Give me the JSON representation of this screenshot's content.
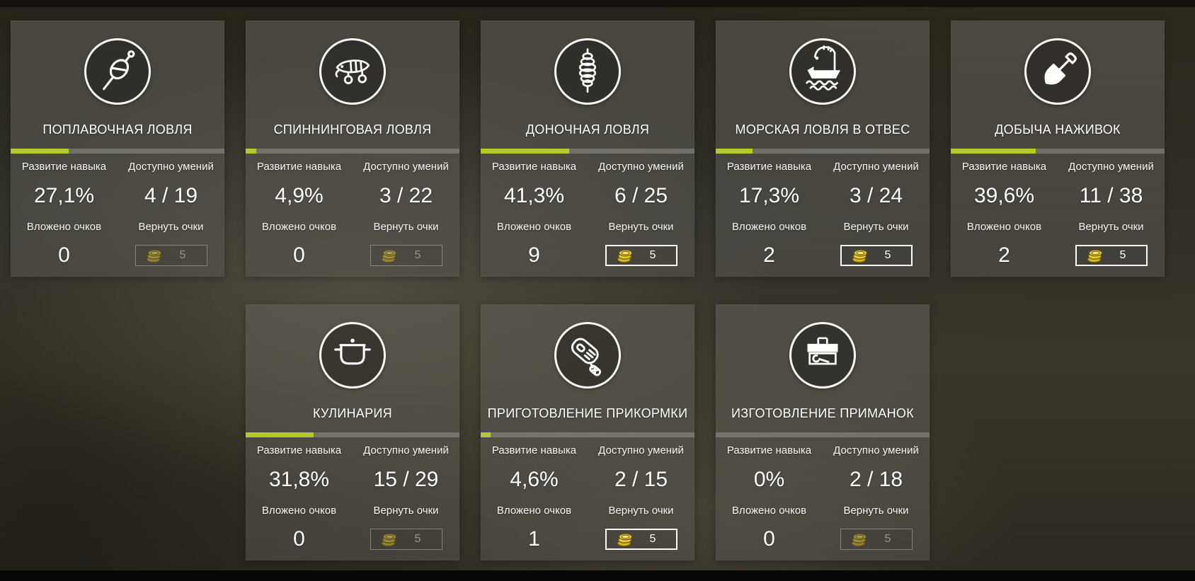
{
  "labels": {
    "skill": "Развитие навыка",
    "abilities": "Доступно умений",
    "invested": "Вложено очков",
    "refund": "Вернуть очки"
  },
  "theme": {
    "progress_fill_color": "#b5c92e",
    "coin_gold_color": "#e8c928",
    "card_accent_border_active": "#ffffff"
  },
  "cards": [
    {
      "icon": "float-icon",
      "symbol": "icon-float",
      "title": "ПОПЛАВОЧНАЯ ЛОВЛЯ",
      "skill_value": "27,1%",
      "progress_percent": 27.1,
      "abilities_value": "4 / 19",
      "invested_value": "0",
      "refund_cost": "5",
      "refund_enabled": false
    },
    {
      "icon": "lure-icon",
      "symbol": "icon-lure",
      "title": "СПИННИНГОВАЯ ЛОВЛЯ",
      "skill_value": "4,9%",
      "progress_percent": 4.9,
      "abilities_value": "3 / 22",
      "invested_value": "0",
      "refund_cost": "5",
      "refund_enabled": false
    },
    {
      "icon": "feeder-icon",
      "symbol": "icon-feeder",
      "title": "ДОНОЧНАЯ ЛОВЛЯ",
      "skill_value": "41,3%",
      "progress_percent": 41.3,
      "abilities_value": "6 / 25",
      "invested_value": "9",
      "refund_cost": "5",
      "refund_enabled": true
    },
    {
      "icon": "boat-icon",
      "symbol": "icon-boat",
      "title": "МОРСКАЯ ЛОВЛЯ В ОТВЕС",
      "skill_value": "17,3%",
      "progress_percent": 17.3,
      "abilities_value": "3 / 24",
      "invested_value": "2",
      "refund_cost": "5",
      "refund_enabled": true
    },
    {
      "icon": "shovel-icon",
      "symbol": "icon-shovel",
      "title": "ДОБЫЧА НАЖИВОК",
      "skill_value": "39,6%",
      "progress_percent": 39.6,
      "abilities_value": "11 / 38",
      "invested_value": "2",
      "refund_cost": "5",
      "refund_enabled": true
    },
    {
      "icon": "pot-icon",
      "symbol": "icon-pot",
      "title": "КУЛИНАРИЯ",
      "skill_value": "31,8%",
      "progress_percent": 31.8,
      "abilities_value": "15 / 29",
      "invested_value": "0",
      "refund_cost": "5",
      "refund_enabled": false
    },
    {
      "icon": "mixer-icon",
      "symbol": "icon-mixer",
      "title": "ПРИГОТОВЛЕНИЕ ПРИКОРМКИ",
      "skill_value": "4,6%",
      "progress_percent": 4.6,
      "abilities_value": "2 / 15",
      "invested_value": "1",
      "refund_cost": "5",
      "refund_enabled": true
    },
    {
      "icon": "toolbox-icon",
      "symbol": "icon-toolbox",
      "title": "ИЗГОТОВЛЕНИЕ ПРИМАНОК",
      "skill_value": "0%",
      "progress_percent": 0,
      "abilities_value": "2 / 18",
      "invested_value": "0",
      "refund_cost": "5",
      "refund_enabled": false
    }
  ]
}
